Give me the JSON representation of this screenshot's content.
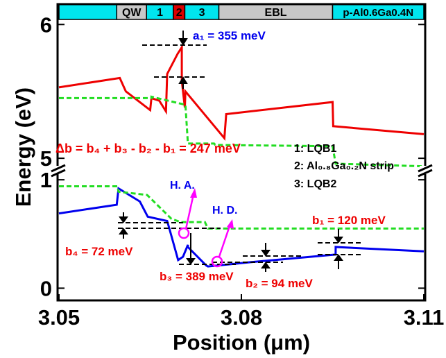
{
  "chart_data": {
    "type": "line",
    "xlabel": "Position (μm)",
    "ylabel": "Energy (eV)",
    "xlim": [
      3.05,
      3.11
    ],
    "x_ticks": [
      "3.05",
      "3.08",
      "3.11"
    ],
    "y_axis_break": true,
    "y_ticks_upper": [
      "5",
      "6"
    ],
    "y_ticks_lower": [
      "0",
      "1"
    ],
    "ylim_upper": [
      4.98,
      6.1
    ],
    "ylim_lower": [
      -0.1,
      1.02
    ],
    "layer_bar": [
      {
        "label": "",
        "x0": 3.05,
        "x1": 3.0595,
        "color": "#00e5ee"
      },
      {
        "label": "QW",
        "x0": 3.0595,
        "x1": 3.0644,
        "color": "#c8c8c8"
      },
      {
        "label": "1",
        "x0": 3.0644,
        "x1": 3.0688,
        "color": "#00e5ee"
      },
      {
        "label": "2",
        "x0": 3.0688,
        "x1": 3.0707,
        "color": "#dd0000"
      },
      {
        "label": "3",
        "x0": 3.0707,
        "x1": 3.0763,
        "color": "#00e5ee"
      },
      {
        "label": "EBL",
        "x0": 3.0763,
        "x1": 3.095,
        "color": "#c8c8c8"
      },
      {
        "label": "p-Al0.6Ga0.4N",
        "x0": 3.095,
        "x1": 3.11,
        "color": "#00e5ee"
      }
    ],
    "series": [
      {
        "color": "#ee0000",
        "dash": false,
        "panel": "upper",
        "x": [
          3.05,
          3.06,
          3.061,
          3.065,
          3.0652,
          3.0665,
          3.0672,
          3.0676,
          3.0678,
          3.0695,
          3.0702,
          3.0702,
          3.0707,
          3.0708,
          3.0772,
          3.0775,
          3.095,
          3.0951,
          3.11
        ],
        "y": [
          5.53,
          5.6,
          5.5,
          5.36,
          5.45,
          5.43,
          5.38,
          5.35,
          5.63,
          5.78,
          5.83,
          5.58,
          5.38,
          5.5,
          5.15,
          5.33,
          5.42,
          5.24,
          5.18
        ]
      },
      {
        "color": "#22dd22",
        "dash": true,
        "panel": "upper",
        "x": [
          3.05,
          3.0652,
          3.0652,
          3.0708,
          3.0712,
          3.0755,
          3.0757,
          3.095,
          3.0955,
          3.11
        ],
        "y": [
          5.45,
          5.45,
          5.46,
          5.4,
          5.11,
          5.11,
          5.1,
          5.09,
          4.96,
          4.94
        ]
      },
      {
        "color": "#0000ee",
        "dash": false,
        "panel": "lower",
        "x": [
          3.05,
          3.0595,
          3.0598,
          3.0633,
          3.0646,
          3.0678,
          3.0682,
          3.0696,
          3.0704,
          3.0712,
          3.0712,
          3.0742,
          3.0745,
          3.0815,
          3.0955,
          3.0955,
          3.11
        ],
        "y": [
          0.69,
          0.77,
          0.92,
          0.8,
          0.66,
          0.62,
          0.54,
          0.26,
          0.29,
          0.4,
          0.38,
          0.21,
          0.2,
          0.24,
          0.31,
          0.38,
          0.34
        ]
      },
      {
        "color": "#22dd22",
        "dash": true,
        "panel": "lower",
        "x": [
          3.05,
          3.0596,
          3.0598,
          3.0645,
          3.0685,
          3.07,
          3.074,
          3.0745,
          3.11
        ],
        "y": [
          0.94,
          0.94,
          0.89,
          0.86,
          0.64,
          0.61,
          0.61,
          0.55,
          0.55
        ]
      }
    ],
    "annotations": {
      "a1": "a₁ = 355 meV",
      "delta_b": "Δb = b₄ + b₃ - b₂ - b₁ = 247 meV",
      "b1": "b₁ = 120 meV",
      "b2": "b₂ = 94 meV",
      "b3": "b₃ = 389 meV",
      "b4": "b₄ = 72 meV",
      "ha": "H. A.",
      "hd": "H. D."
    },
    "legend_notes": [
      "1: LQB1",
      "2: Al₀.₈Ga₀.₂N strip",
      "3: LQB2"
    ]
  }
}
